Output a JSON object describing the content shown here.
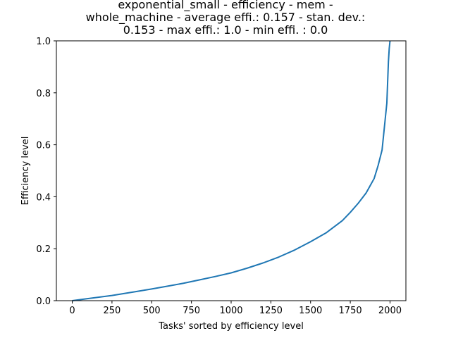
{
  "chart_data": {
    "type": "line",
    "title_lines": [
      "exponential_small - efficiency - mem -",
      "whole_machine - average effi.: 0.157 - stan. dev.:",
      "0.153 - max effi.: 1.0 - min effi. : 0.0"
    ],
    "xlabel": "Tasks' sorted by efficiency level",
    "ylabel": "Efficiency level",
    "xlim": [
      -100,
      2100
    ],
    "ylim": [
      0.0,
      1.0
    ],
    "xticks": [
      0,
      250,
      500,
      750,
      1000,
      1250,
      1500,
      1750,
      2000
    ],
    "xtick_labels": [
      "0",
      "250",
      "500",
      "750",
      "1000",
      "1250",
      "1500",
      "1750",
      "2000"
    ],
    "yticks": [
      0.0,
      0.2,
      0.4,
      0.6,
      0.8,
      1.0
    ],
    "ytick_labels": [
      "0.0",
      "0.2",
      "0.4",
      "0.6",
      "0.8",
      "1.0"
    ],
    "grid": false,
    "series": [
      {
        "color": "#1f77b4",
        "x": [
          0,
          100,
          250,
          400,
          500,
          600,
          700,
          800,
          900,
          1000,
          1100,
          1200,
          1300,
          1400,
          1500,
          1600,
          1700,
          1750,
          1800,
          1850,
          1900,
          1925,
          1950,
          1960,
          1970,
          1980,
          1985,
          1990,
          1995,
          2000
        ],
        "y": [
          0.0,
          0.008,
          0.02,
          0.035,
          0.045,
          0.056,
          0.067,
          0.08,
          0.093,
          0.107,
          0.125,
          0.145,
          0.168,
          0.195,
          0.227,
          0.262,
          0.308,
          0.34,
          0.375,
          0.415,
          0.47,
          0.52,
          0.58,
          0.64,
          0.7,
          0.76,
          0.84,
          0.92,
          0.97,
          1.0
        ]
      }
    ]
  }
}
